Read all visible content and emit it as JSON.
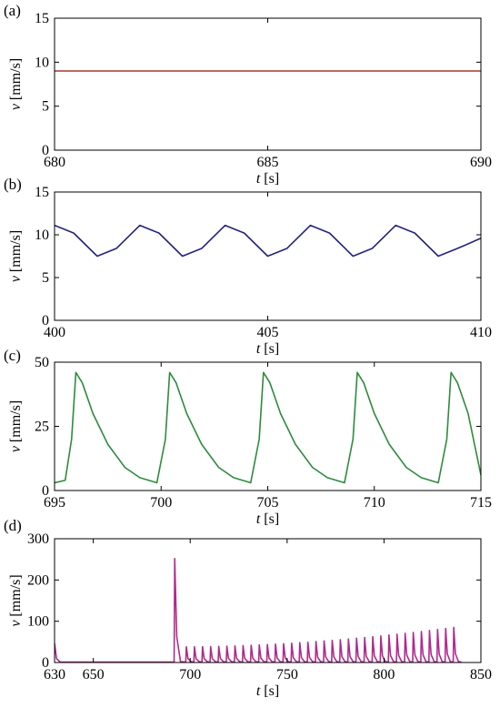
{
  "chart_data": [
    {
      "type": "line",
      "panel_label": "(a)",
      "xlabel_var": "t",
      "xlabel_unit": " [s]",
      "ylabel_var": "v",
      "ylabel_unit": " [mm/s]",
      "xlim": [
        680,
        690
      ],
      "ylim": [
        0,
        15
      ],
      "xticks": [
        680,
        685,
        690
      ],
      "yticks": [
        0,
        5,
        10,
        15
      ],
      "color": "#a0392c",
      "series": [
        {
          "x": [
            680,
            690
          ],
          "y": [
            9.0,
            9.0
          ]
        }
      ]
    },
    {
      "type": "line",
      "panel_label": "(b)",
      "xlabel_var": "t",
      "xlabel_unit": " [s]",
      "ylabel_var": "v",
      "ylabel_unit": " [mm/s]",
      "xlim": [
        400,
        410
      ],
      "ylim": [
        0,
        15
      ],
      "xticks": [
        400,
        405,
        410
      ],
      "yticks": [
        0,
        5,
        10,
        15
      ],
      "color": "#23237e",
      "series": [
        {
          "x": [
            400.0,
            400.45,
            401.0,
            401.45,
            402.0,
            402.45,
            403.0,
            403.45,
            404.0,
            404.45,
            405.0,
            405.45,
            406.0,
            406.45,
            407.0,
            407.45,
            408.0,
            408.45,
            409.0,
            409.45,
            410.0
          ],
          "y": [
            11.1,
            10.2,
            7.5,
            8.4,
            11.1,
            10.2,
            7.5,
            8.4,
            11.1,
            10.2,
            7.5,
            8.4,
            11.1,
            10.2,
            7.5,
            8.4,
            11.1,
            10.2,
            7.5,
            8.4,
            9.6
          ]
        }
      ]
    },
    {
      "type": "line",
      "panel_label": "(c)",
      "xlabel_var": "t",
      "xlabel_unit": " [s]",
      "ylabel_var": "v",
      "ylabel_unit": " [mm/s]",
      "xlim": [
        695,
        715
      ],
      "ylim": [
        0,
        50
      ],
      "xticks": [
        695,
        700,
        705,
        710,
        715
      ],
      "yticks": [
        0,
        25,
        50
      ],
      "color": "#2e8b3e",
      "series": [
        {
          "x": [
            695.0,
            695.5,
            695.8,
            696.0,
            696.3,
            696.8,
            697.5,
            698.3,
            699.0,
            699.8,
            700.2,
            700.4,
            700.7,
            701.2,
            701.9,
            702.7,
            703.4,
            704.2,
            704.6,
            704.8,
            705.1,
            705.6,
            706.3,
            707.1,
            707.8,
            708.6,
            709.0,
            709.2,
            709.5,
            710.0,
            710.7,
            711.5,
            712.2,
            713.0,
            713.4,
            713.6,
            713.9,
            714.4,
            715.0
          ],
          "y": [
            3,
            4,
            20,
            46,
            42,
            30,
            18,
            9,
            5,
            3,
            20,
            46,
            42,
            30,
            18,
            9,
            5,
            3,
            20,
            46,
            42,
            30,
            18,
            9,
            5,
            3,
            20,
            46,
            42,
            30,
            18,
            9,
            5,
            3,
            20,
            46,
            42,
            30,
            6
          ]
        }
      ]
    },
    {
      "type": "line",
      "panel_label": "(d)",
      "xlabel_var": "t",
      "xlabel_unit": " [s]",
      "ylabel_var": "v",
      "ylabel_unit": " [mm/s]",
      "xlim": [
        630,
        850
      ],
      "ylim": [
        0,
        300
      ],
      "xticks": [
        630,
        650,
        700,
        750,
        800,
        850
      ],
      "yticks": [
        0,
        100,
        200,
        300
      ],
      "color": "#b02a8e",
      "spikes": {
        "first": {
          "t": 631,
          "peak": 47
        },
        "big": {
          "t": 692,
          "peak": 252
        },
        "train_start": 698,
        "train_end": 836,
        "train_count": 34,
        "peak_start": 38,
        "peak_end": 85
      }
    }
  ]
}
